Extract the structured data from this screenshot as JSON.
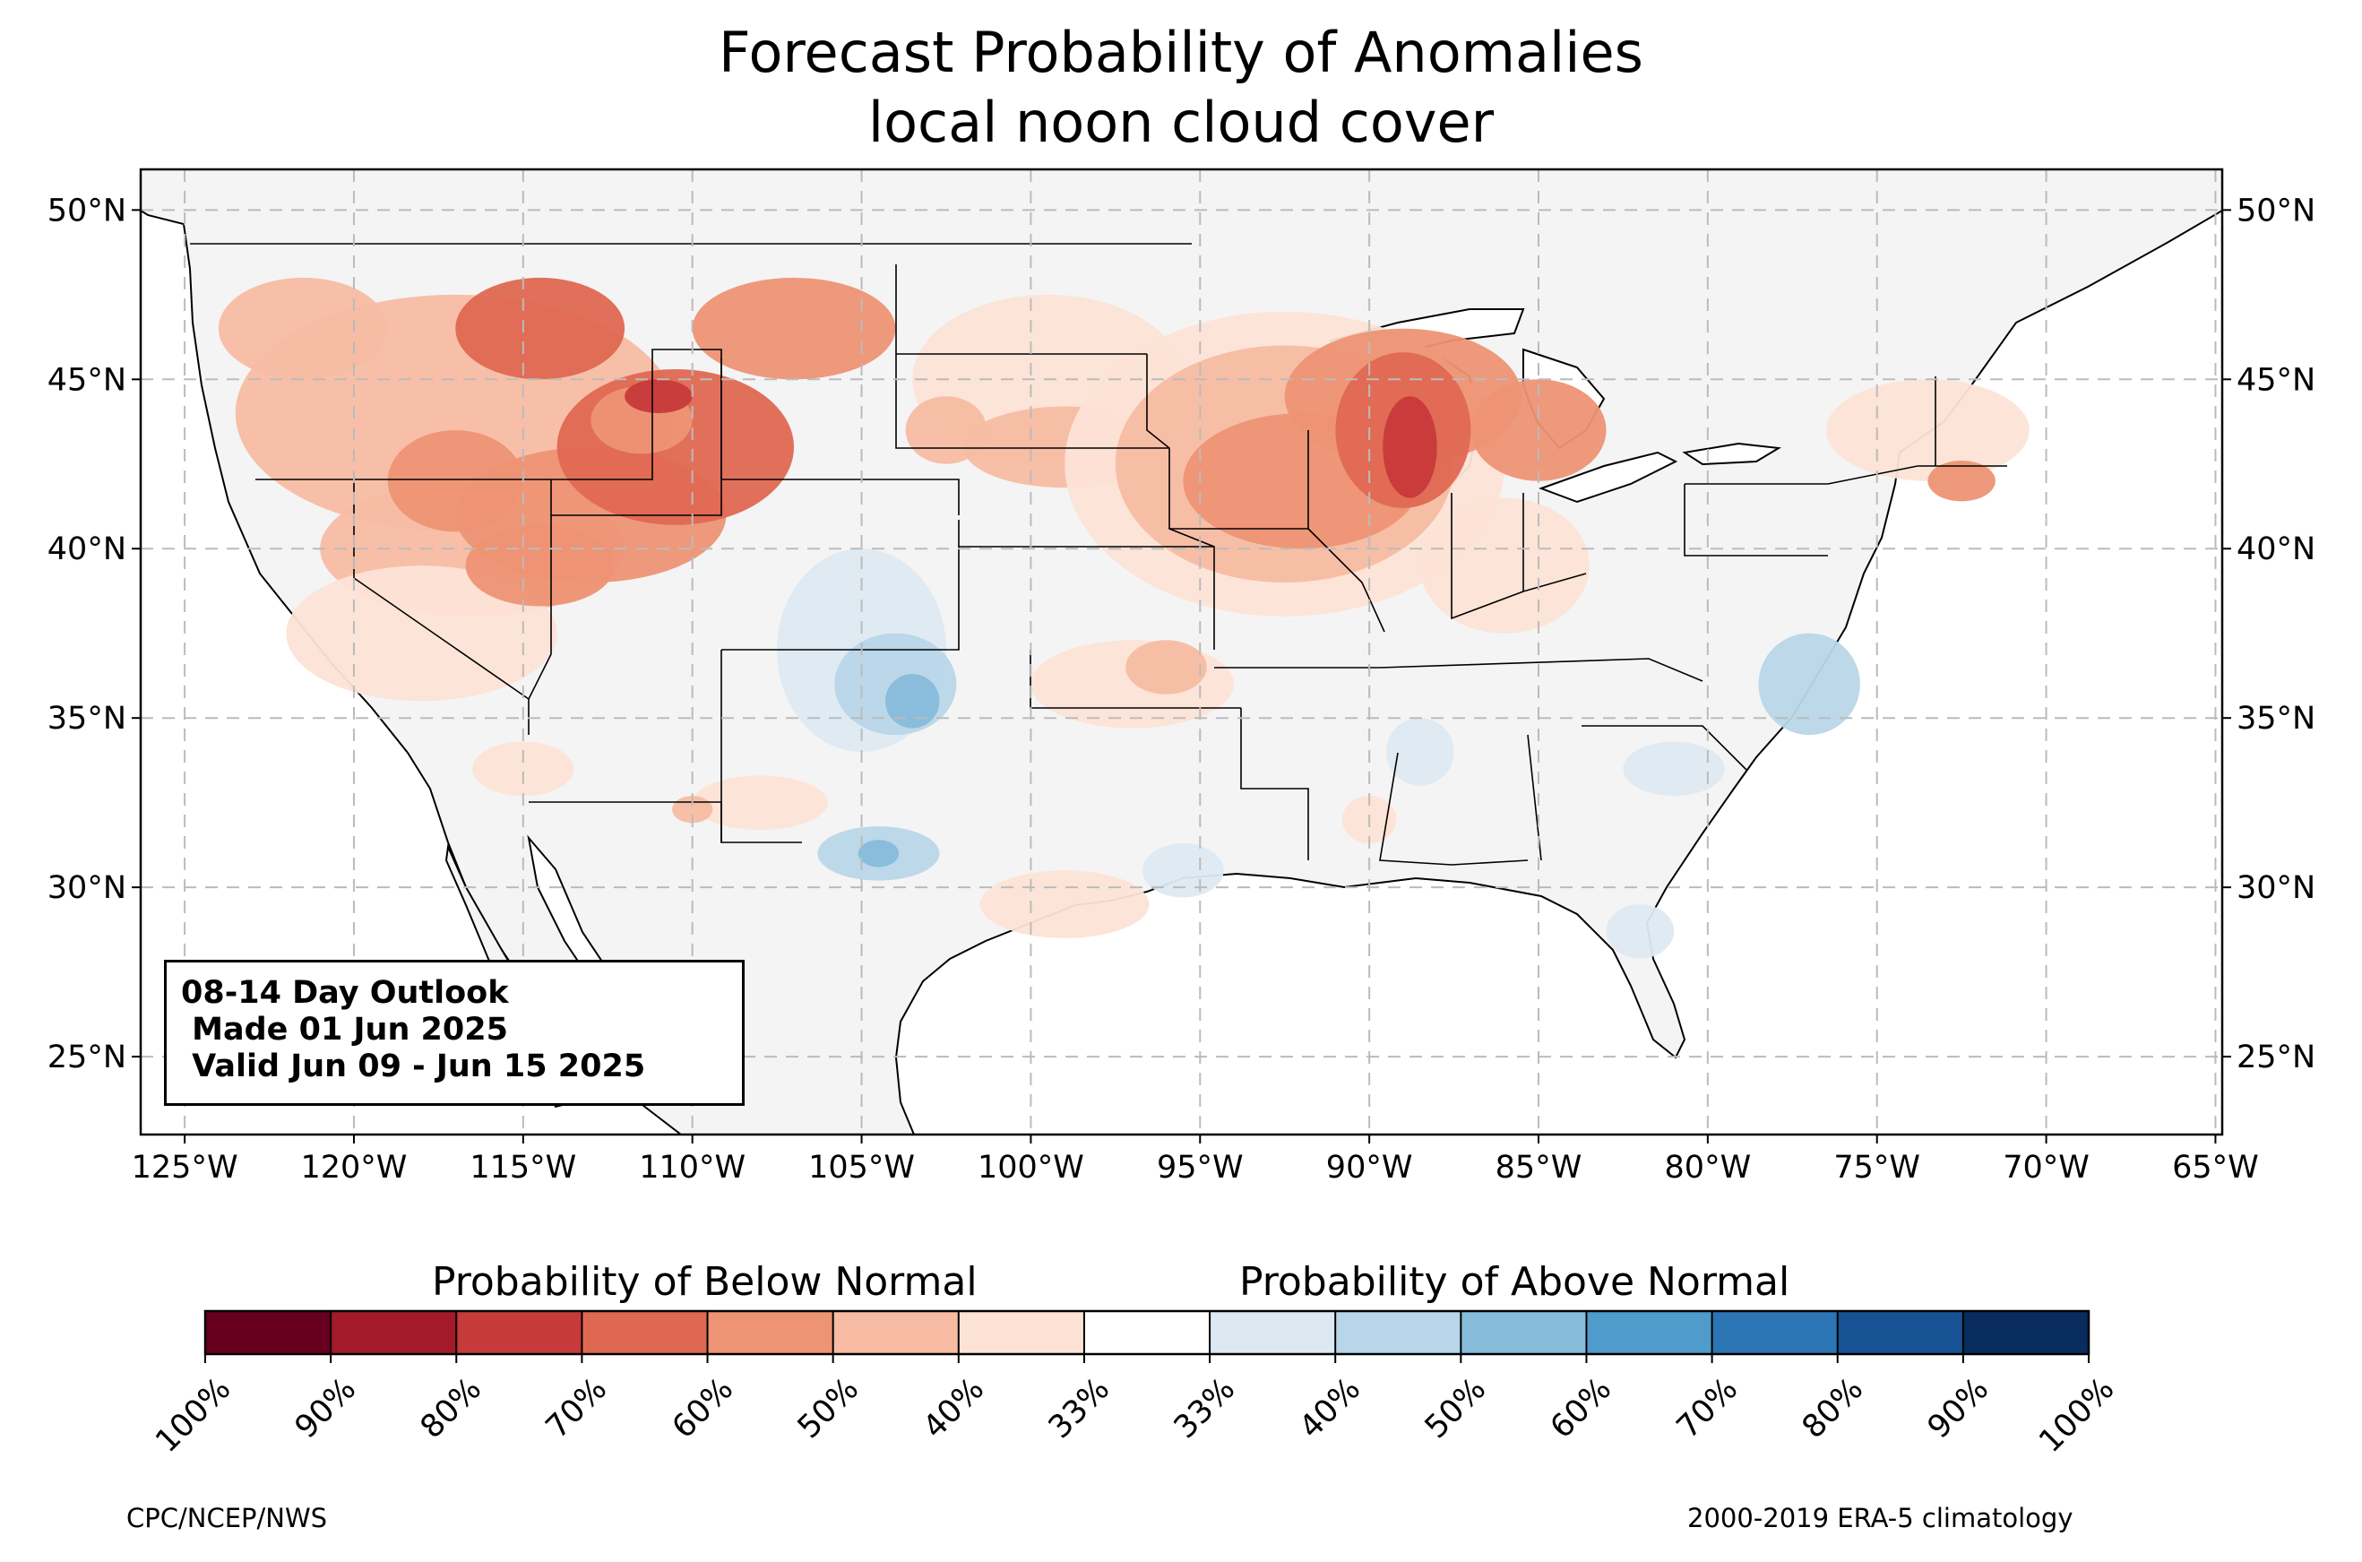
{
  "title": {
    "line1": "Forecast Probability of Anomalies",
    "line2": "local noon cloud cover"
  },
  "map": {
    "extent": {
      "lon": [
        -126.3,
        -64.8
      ],
      "lat": [
        22.7,
        51.2
      ]
    },
    "longitude_ticks": [
      {
        "lon": -125,
        "label": "125°W"
      },
      {
        "lon": -120,
        "label": "120°W"
      },
      {
        "lon": -115,
        "label": "115°W"
      },
      {
        "lon": -110,
        "label": "110°W"
      },
      {
        "lon": -105,
        "label": "105°W"
      },
      {
        "lon": -100,
        "label": "100°W"
      },
      {
        "lon": -95,
        "label": "95°W"
      },
      {
        "lon": -90,
        "label": "90°W"
      },
      {
        "lon": -85,
        "label": "85°W"
      },
      {
        "lon": -80,
        "label": "80°W"
      },
      {
        "lon": -75,
        "label": "75°W"
      },
      {
        "lon": -70,
        "label": "70°W"
      },
      {
        "lon": -65,
        "label": "65°W"
      }
    ],
    "latitude_ticks": [
      {
        "lat": 50,
        "label": "50°N"
      },
      {
        "lat": 45,
        "label": "45°N"
      },
      {
        "lat": 40,
        "label": "40°N"
      },
      {
        "lat": 35,
        "label": "35°N"
      },
      {
        "lat": 30,
        "label": "30°N"
      },
      {
        "lat": 25,
        "label": "25°N"
      }
    ],
    "gridlines": "dashed",
    "colors": {
      "land": "#f4f4f4",
      "water": "#ffffff",
      "border": "#000000",
      "county": "#999999"
    }
  },
  "info_box": {
    "line1": "08-14 Day Outlook",
    "line2": " Made 01 Jun 2025",
    "line3": " Valid Jun 09 - Jun 15 2025"
  },
  "colorbar": {
    "below_label": "Probability of Below Normal",
    "above_label": "Probability of Above Normal",
    "bins": [
      {
        "label": "100%",
        "color": "#67001f"
      },
      {
        "label": "90%",
        "color": "#a31a2b"
      },
      {
        "label": "80%",
        "color": "#c73a3a"
      },
      {
        "label": "70%",
        "color": "#df6852"
      },
      {
        "label": "60%",
        "color": "#ed9474"
      },
      {
        "label": "50%",
        "color": "#f7bca3"
      },
      {
        "label": "40%",
        "color": "#fce3d6"
      },
      {
        "label": "33%",
        "color": "#ffffff"
      },
      {
        "label": "33%",
        "color": "#dde9f2"
      },
      {
        "label": "40%",
        "color": "#b8d6e8"
      },
      {
        "label": "50%",
        "color": "#87bcdb"
      },
      {
        "label": "60%",
        "color": "#4f9bcb"
      },
      {
        "label": "70%",
        "color": "#2c75b4"
      },
      {
        "label": "80%",
        "color": "#175294"
      },
      {
        "label": "90%",
        "color": "#082c5e"
      },
      {
        "label": "100%",
        "color": ""
      }
    ]
  },
  "credits": {
    "left": "CPC/NCEP/NWS",
    "right": "2000-2019 ERA-5 climatology"
  },
  "anomaly_regions": [
    {
      "category": "below",
      "level": 50,
      "center": [
        -117.0,
        44.0
      ],
      "radius": [
        6.5,
        3.5
      ]
    },
    {
      "category": "below",
      "level": 50,
      "center": [
        -116.5,
        40.0
      ],
      "radius": [
        4.5,
        2.0
      ]
    },
    {
      "category": "below",
      "level": 40,
      "center": [
        -118.0,
        37.5
      ],
      "radius": [
        4.0,
        2.0
      ]
    },
    {
      "category": "below",
      "level": 60,
      "center": [
        -113.0,
        41.0
      ],
      "radius": [
        4.0,
        2.0
      ]
    },
    {
      "category": "below",
      "level": 60,
      "center": [
        -114.5,
        39.5
      ],
      "radius": [
        2.2,
        1.2
      ]
    },
    {
      "category": "below",
      "level": 60,
      "center": [
        -117.0,
        42.0
      ],
      "radius": [
        2.0,
        1.5
      ]
    },
    {
      "category": "below",
      "level": 70,
      "center": [
        -110.5,
        43.0
      ],
      "radius": [
        3.5,
        2.3
      ]
    },
    {
      "category": "below",
      "level": 70,
      "center": [
        -114.5,
        46.5
      ],
      "radius": [
        2.5,
        1.5
      ]
    },
    {
      "category": "below",
      "level": 60,
      "center": [
        -107.0,
        46.5
      ],
      "radius": [
        3.0,
        1.5
      ]
    },
    {
      "category": "below",
      "level": 50,
      "center": [
        -121.5,
        46.5
      ],
      "radius": [
        2.5,
        1.5
      ]
    },
    {
      "category": "below",
      "level": 60,
      "center": [
        -111.5,
        43.8
      ],
      "radius": [
        1.5,
        1.0
      ]
    },
    {
      "category": "below",
      "level": 80,
      "center": [
        -111.0,
        44.5
      ],
      "radius": [
        1.0,
        0.5
      ]
    },
    {
      "category": "below",
      "level": 40,
      "center": [
        -108.0,
        32.5
      ],
      "radius": [
        2.0,
        0.8
      ]
    },
    {
      "category": "below",
      "level": 50,
      "center": [
        -110.0,
        32.3
      ],
      "radius": [
        0.6,
        0.4
      ]
    },
    {
      "category": "below",
      "level": 40,
      "center": [
        -115.0,
        33.5
      ],
      "radius": [
        1.5,
        0.8
      ]
    },
    {
      "category": "below",
      "level": 40,
      "center": [
        -99.5,
        45.0
      ],
      "radius": [
        4.0,
        2.5
      ]
    },
    {
      "category": "below",
      "level": 50,
      "center": [
        -99.0,
        43.0
      ],
      "radius": [
        3.0,
        1.2
      ]
    },
    {
      "category": "below",
      "level": 50,
      "center": [
        -102.5,
        43.5
      ],
      "radius": [
        1.2,
        1.0
      ]
    },
    {
      "category": "below",
      "level": 40,
      "center": [
        -97.0,
        36.0
      ],
      "radius": [
        3.0,
        1.3
      ]
    },
    {
      "category": "below",
      "level": 50,
      "center": [
        -96.0,
        36.5
      ],
      "radius": [
        1.2,
        0.8
      ]
    },
    {
      "category": "below",
      "level": 40,
      "center": [
        -99.0,
        29.5
      ],
      "radius": [
        2.5,
        1.0
      ]
    },
    {
      "category": "below",
      "level": 40,
      "center": [
        -92.5,
        42.5
      ],
      "radius": [
        6.5,
        4.5
      ]
    },
    {
      "category": "below",
      "level": 50,
      "center": [
        -92.5,
        42.5
      ],
      "radius": [
        5.0,
        3.5
      ]
    },
    {
      "category": "below",
      "level": 60,
      "center": [
        -92.0,
        42.0
      ],
      "radius": [
        3.5,
        2.0
      ]
    },
    {
      "category": "below",
      "level": 60,
      "center": [
        -89.0,
        44.5
      ],
      "radius": [
        3.5,
        2.0
      ]
    },
    {
      "category": "below",
      "level": 70,
      "center": [
        -89.0,
        43.5
      ],
      "radius": [
        2.0,
        2.3
      ]
    },
    {
      "category": "below",
      "level": 80,
      "center": [
        -88.8,
        43.0
      ],
      "radius": [
        0.8,
        1.5
      ]
    },
    {
      "category": "below",
      "level": 60,
      "center": [
        -85.0,
        43.5
      ],
      "radius": [
        2.0,
        1.5
      ]
    },
    {
      "category": "below",
      "level": 40,
      "center": [
        -86.0,
        39.5
      ],
      "radius": [
        2.5,
        2.0
      ]
    },
    {
      "category": "below",
      "level": 40,
      "center": [
        -73.5,
        43.5
      ],
      "radius": [
        3.0,
        1.5
      ]
    },
    {
      "category": "below",
      "level": 60,
      "center": [
        -72.5,
        42.0
      ],
      "radius": [
        1.0,
        0.6
      ]
    },
    {
      "category": "below",
      "level": 40,
      "center": [
        -90.0,
        32.0
      ],
      "radius": [
        0.8,
        0.7
      ]
    },
    {
      "category": "above",
      "level": 40,
      "center": [
        -105.0,
        37.0
      ],
      "radius": [
        2.5,
        3.0
      ]
    },
    {
      "category": "above",
      "level": 50,
      "center": [
        -104.0,
        36.0
      ],
      "radius": [
        1.8,
        1.5
      ]
    },
    {
      "category": "above",
      "level": 60,
      "center": [
        -103.5,
        35.5
      ],
      "radius": [
        0.8,
        0.8
      ]
    },
    {
      "category": "above",
      "level": 50,
      "center": [
        -104.5,
        31.0
      ],
      "radius": [
        1.8,
        0.8
      ]
    },
    {
      "category": "above",
      "level": 60,
      "center": [
        -104.5,
        31.0
      ],
      "radius": [
        0.6,
        0.4
      ]
    },
    {
      "category": "above",
      "level": 40,
      "center": [
        -95.5,
        30.5
      ],
      "radius": [
        1.2,
        0.8
      ]
    },
    {
      "category": "above",
      "level": 50,
      "center": [
        -77.0,
        36.0
      ],
      "radius": [
        1.5,
        1.5
      ]
    },
    {
      "category": "above",
      "level": 40,
      "center": [
        -82.0,
        28.7
      ],
      "radius": [
        1.0,
        0.8
      ]
    },
    {
      "category": "above",
      "level": 40,
      "center": [
        -88.5,
        34.0
      ],
      "radius": [
        1.0,
        1.0
      ]
    },
    {
      "category": "above",
      "level": 40,
      "center": [
        -81.0,
        33.5
      ],
      "radius": [
        1.5,
        0.8
      ]
    }
  ]
}
